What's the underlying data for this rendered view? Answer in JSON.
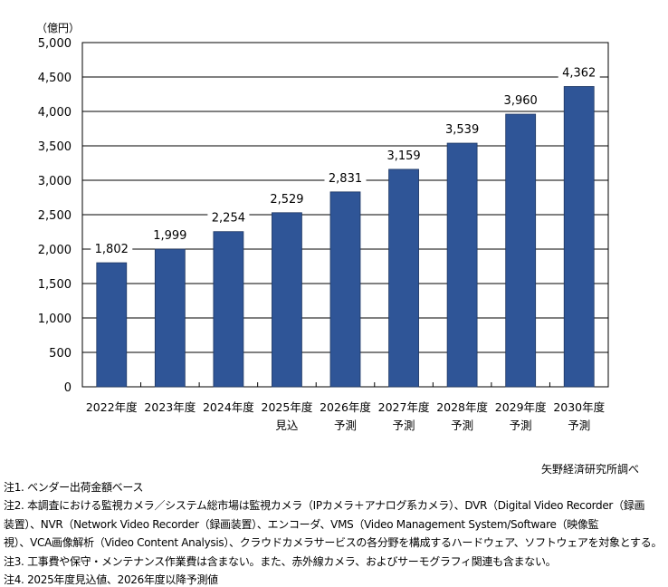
{
  "chart_data": {
    "type": "bar",
    "unit_label": "（億円）",
    "categories": [
      [
        "2022年度",
        ""
      ],
      [
        "2023年度",
        ""
      ],
      [
        "2024年度",
        ""
      ],
      [
        "2025年度",
        "見込"
      ],
      [
        "2026年度",
        "予測"
      ],
      [
        "2027年度",
        "予測"
      ],
      [
        "2028年度",
        "予測"
      ],
      [
        "2029年度",
        "予測"
      ],
      [
        "2030年度",
        "予測"
      ]
    ],
    "values": [
      1802,
      1999,
      2254,
      2529,
      2831,
      3159,
      3539,
      3960,
      4362
    ],
    "data_labels": [
      "1,802",
      "1,999",
      "2,254",
      "2,529",
      "2,831",
      "3,159",
      "3,539",
      "3,960",
      "4,362"
    ],
    "ylim": [
      0,
      5000
    ],
    "yticks": [
      0,
      500,
      1000,
      1500,
      2000,
      2500,
      3000,
      3500,
      4000,
      4500,
      5000
    ],
    "ytick_labels": [
      "0",
      "500",
      "1,000",
      "1,500",
      "2,000",
      "2,500",
      "3,000",
      "3,500",
      "4,000",
      "4,500",
      "5,000"
    ],
    "grid": true,
    "bar_color": "#2F5597",
    "bar_edge_color": "#1F3864"
  },
  "source": "矢野経済研究所調べ",
  "notes": [
    "注1. ベンダー出荷金額ベース",
    "注2. 本調査における監視カメラ／システム総市場は監視カメラ（IPカメラ＋アナログ系カメラ）、DVR（Digital Video Recorder（録画",
    "装置）、NVR（Network Video Recorder（録画装置）、エンコーダ、VMS（Video Management System/Software（映像監",
    "視）、VCA画像解析（Video Content Analysis）、クラウドカメラサービスの各分野を構成するハードウェア、ソフトウェアを対象とする。",
    "注3. 工事費や保守・メンテナンス作業費は含まない。また、赤外線カメラ、およびサーモグラフィ関連も含まない。",
    "注4. 2025年度見込値、2026年度以降予測値"
  ]
}
